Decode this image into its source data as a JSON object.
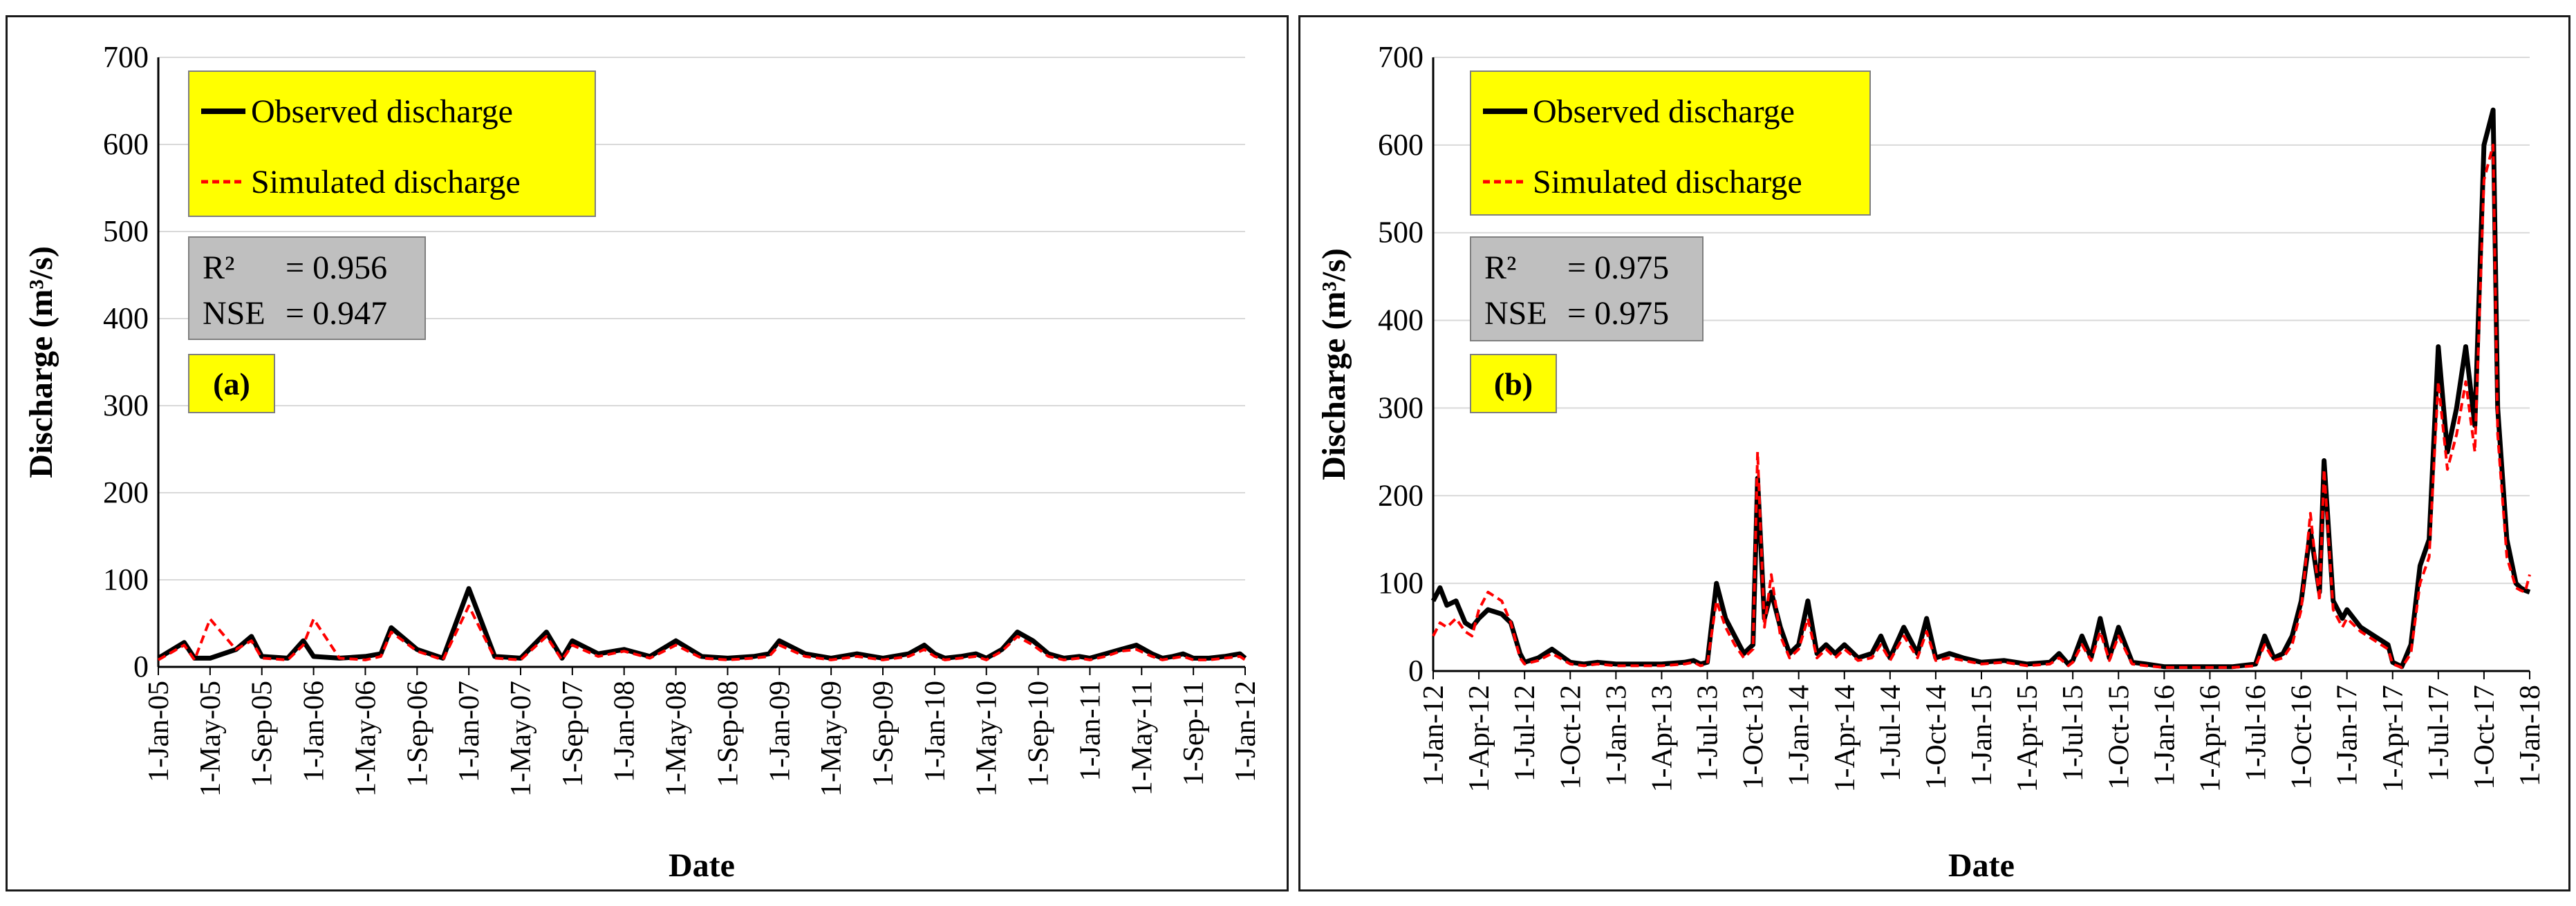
{
  "colors": {
    "observed": "#000000",
    "simulated": "#ff0000",
    "legend_bg": "#ffff00",
    "stats_bg": "#bfbfbf",
    "grid": "#d9d9d9"
  },
  "chart_data": [
    {
      "type": "line",
      "panel_label": "(a)",
      "ylabel": "Discharge (m³/s)",
      "xlabel": "Date",
      "ylim": [
        0,
        700
      ],
      "yticks": [
        "0",
        "100",
        "200",
        "300",
        "400",
        "500",
        "600",
        "700"
      ],
      "xticks": [
        "1-Jan-05",
        "1-May-05",
        "1-Sep-05",
        "1-Jan-06",
        "1-May-06",
        "1-Sep-06",
        "1-Jan-07",
        "1-May-07",
        "1-Sep-07",
        "1-Jan-08",
        "1-May-08",
        "1-Sep-08",
        "1-Jan-09",
        "1-May-09",
        "1-Sep-09",
        "1-Jan-10",
        "1-May-10",
        "1-Sep-10",
        "1-Jan-11",
        "1-May-11",
        "1-Sep-11",
        "1-Jan-12"
      ],
      "legend": {
        "observed": "Observed discharge",
        "simulated": "Simulated  discharge"
      },
      "stats": {
        "r2_label": "R²",
        "r2": "=  0.956",
        "nse_label": "NSE",
        "nse": "=  0.947"
      },
      "series": [
        {
          "name": "Observed discharge",
          "style": "solid",
          "x": [
            0,
            0.5,
            0.7,
            1,
            1.5,
            1.8,
            2,
            2.5,
            2.8,
            3,
            3.5,
            4,
            4.3,
            4.5,
            5,
            5.5,
            6,
            6.5,
            7,
            7.5,
            7.8,
            8,
            8.5,
            9,
            9.5,
            10,
            10.5,
            11,
            11.5,
            11.8,
            12,
            12.5,
            13,
            13.5,
            14,
            14.5,
            14.8,
            15,
            15.2,
            15.5,
            15.8,
            16,
            16.3,
            16.6,
            16.9,
            17.2,
            17.5,
            17.8,
            18,
            18.3,
            18.6,
            18.9,
            19.2,
            19.4,
            19.6,
            19.8,
            20,
            20.3,
            20.6,
            20.9,
            21
          ],
          "y": [
            10,
            28,
            10,
            10,
            20,
            35,
            12,
            10,
            30,
            12,
            10,
            12,
            15,
            45,
            20,
            10,
            90,
            12,
            10,
            40,
            10,
            30,
            15,
            20,
            12,
            30,
            12,
            10,
            12,
            15,
            30,
            15,
            10,
            15,
            10,
            15,
            25,
            15,
            10,
            12,
            15,
            10,
            20,
            40,
            30,
            15,
            10,
            12,
            10,
            15,
            20,
            25,
            15,
            10,
            12,
            15,
            10,
            10,
            12,
            15,
            10
          ]
        },
        {
          "name": "Simulated discharge",
          "style": "dashed",
          "x": [
            0,
            0.5,
            0.7,
            1,
            1.5,
            1.8,
            2,
            2.5,
            2.8,
            3,
            3.5,
            4,
            4.3,
            4.5,
            5,
            5.5,
            6,
            6.5,
            7,
            7.5,
            7.8,
            8,
            8.5,
            9,
            9.5,
            10,
            10.5,
            11,
            11.5,
            11.8,
            12,
            12.5,
            13,
            13.5,
            14,
            14.5,
            14.8,
            15,
            15.2,
            15.5,
            15.8,
            16,
            16.3,
            16.6,
            16.9,
            17.2,
            17.5,
            17.8,
            18,
            18.3,
            18.6,
            18.9,
            19.2,
            19.4,
            19.6,
            19.8,
            20,
            20.3,
            20.6,
            20.9,
            21
          ],
          "y": [
            8,
            25,
            8,
            55,
            20,
            30,
            10,
            8,
            25,
            55,
            10,
            8,
            12,
            40,
            18,
            8,
            70,
            10,
            8,
            35,
            8,
            25,
            12,
            18,
            10,
            25,
            10,
            8,
            10,
            12,
            25,
            12,
            8,
            12,
            8,
            12,
            20,
            12,
            8,
            10,
            12,
            8,
            18,
            35,
            25,
            12,
            8,
            10,
            8,
            12,
            18,
            20,
            12,
            8,
            10,
            12,
            8,
            8,
            10,
            12,
            8
          ]
        }
      ]
    },
    {
      "type": "line",
      "panel_label": "(b)",
      "ylabel": "Discharge (m³/s)",
      "xlabel": "Date",
      "ylim": [
        0,
        700
      ],
      "yticks": [
        "0",
        "100",
        "200",
        "300",
        "400",
        "500",
        "600",
        "700"
      ],
      "xticks": [
        "1-Jan-12",
        "1-Apr-12",
        "1-Jul-12",
        "1-Oct-12",
        "1-Jan-13",
        "1-Apr-13",
        "1-Jul-13",
        "1-Oct-13",
        "1-Jan-14",
        "1-Apr-14",
        "1-Jul-14",
        "1-Oct-14",
        "1-Jan-15",
        "1-Apr-15",
        "1-Jul-15",
        "1-Oct-15",
        "1-Jan-16",
        "1-Apr-16",
        "1-Jul-16",
        "1-Oct-16",
        "1-Jan-17",
        "1-Apr-17",
        "1-Jul-17",
        "1-Oct-17",
        "1-Jan-18"
      ],
      "legend": {
        "observed": "Observed discharge",
        "simulated": "Simulated  discharge"
      },
      "stats": {
        "r2_label": "R²",
        "r2": "=  0.975",
        "nse_label": "NSE",
        "nse": "=  0.975"
      },
      "series": [
        {
          "name": "Observed discharge",
          "style": "solid",
          "x": [
            0,
            0.15,
            0.3,
            0.5,
            0.7,
            0.85,
            1,
            1.2,
            1.5,
            1.7,
            1.9,
            2,
            2.3,
            2.6,
            3,
            3.3,
            3.6,
            4,
            4.5,
            5,
            5.5,
            5.7,
            5.85,
            6,
            6.2,
            6.4,
            6.6,
            6.8,
            7,
            7.1,
            7.25,
            7.4,
            7.6,
            7.8,
            8,
            8.2,
            8.4,
            8.6,
            8.8,
            9,
            9.3,
            9.6,
            9.8,
            10,
            10.3,
            10.6,
            10.8,
            11,
            11.3,
            11.6,
            12,
            12.5,
            13,
            13.5,
            13.7,
            13.9,
            14,
            14.2,
            14.4,
            14.6,
            14.8,
            15,
            15.3,
            15.6,
            16,
            16.5,
            17,
            17.5,
            18,
            18.2,
            18.4,
            18.6,
            18.8,
            19,
            19.2,
            19.4,
            19.5,
            19.7,
            19.9,
            20,
            20.3,
            20.6,
            20.9,
            21,
            21.2,
            21.4,
            21.6,
            21.8,
            22,
            22.2,
            22.4,
            22.6,
            22.8,
            23,
            23.2,
            23.3,
            23.5,
            23.7,
            23.8,
            23.9,
            24
          ],
          "y": [
            80,
            95,
            75,
            80,
            55,
            50,
            60,
            70,
            65,
            55,
            20,
            10,
            15,
            25,
            10,
            8,
            10,
            8,
            8,
            8,
            10,
            12,
            8,
            10,
            100,
            60,
            40,
            20,
            30,
            220,
            60,
            90,
            50,
            20,
            30,
            80,
            20,
            30,
            20,
            30,
            15,
            20,
            40,
            15,
            50,
            20,
            60,
            15,
            20,
            15,
            10,
            12,
            8,
            10,
            20,
            8,
            12,
            40,
            15,
            60,
            15,
            50,
            10,
            8,
            5,
            5,
            5,
            5,
            8,
            40,
            15,
            20,
            40,
            80,
            160,
            90,
            240,
            80,
            60,
            70,
            50,
            40,
            30,
            10,
            5,
            30,
            120,
            150,
            370,
            250,
            300,
            370,
            280,
            600,
            640,
            300,
            150,
            100,
            95,
            92,
            90
          ]
        },
        {
          "name": "Simulated discharge",
          "style": "dashed",
          "x": [
            0,
            0.15,
            0.3,
            0.5,
            0.7,
            0.85,
            1,
            1.2,
            1.5,
            1.7,
            1.9,
            2,
            2.3,
            2.6,
            3,
            3.3,
            3.6,
            4,
            4.5,
            5,
            5.5,
            5.7,
            5.85,
            6,
            6.2,
            6.4,
            6.6,
            6.8,
            7,
            7.1,
            7.25,
            7.4,
            7.6,
            7.8,
            8,
            8.2,
            8.4,
            8.6,
            8.8,
            9,
            9.3,
            9.6,
            9.8,
            10,
            10.3,
            10.6,
            10.8,
            11,
            11.3,
            11.6,
            12,
            12.5,
            13,
            13.5,
            13.7,
            13.9,
            14,
            14.2,
            14.4,
            14.6,
            14.8,
            15,
            15.3,
            15.6,
            16,
            16.5,
            17,
            17.5,
            18,
            18.2,
            18.4,
            18.6,
            18.8,
            19,
            19.2,
            19.4,
            19.5,
            19.7,
            19.9,
            20,
            20.3,
            20.6,
            20.9,
            21,
            21.2,
            21.4,
            21.6,
            21.8,
            22,
            22.2,
            22.4,
            22.6,
            22.8,
            23,
            23.2,
            23.3,
            23.5,
            23.7,
            23.8,
            23.9,
            24
          ],
          "y": [
            40,
            55,
            50,
            60,
            45,
            40,
            70,
            90,
            80,
            55,
            15,
            8,
            12,
            20,
            8,
            6,
            8,
            6,
            6,
            6,
            8,
            10,
            6,
            8,
            80,
            50,
            30,
            15,
            25,
            250,
            50,
            110,
            40,
            15,
            25,
            60,
            15,
            25,
            15,
            25,
            12,
            15,
            30,
            12,
            40,
            15,
            45,
            12,
            15,
            12,
            8,
            10,
            6,
            8,
            15,
            6,
            10,
            30,
            12,
            45,
            12,
            40,
            8,
            6,
            4,
            4,
            4,
            4,
            6,
            30,
            12,
            15,
            30,
            70,
            180,
            80,
            230,
            70,
            50,
            60,
            45,
            35,
            25,
            8,
            4,
            20,
            100,
            130,
            330,
            230,
            270,
            330,
            250,
            560,
            600,
            270,
            130,
            95,
            92,
            90,
            110
          ]
        }
      ]
    }
  ]
}
